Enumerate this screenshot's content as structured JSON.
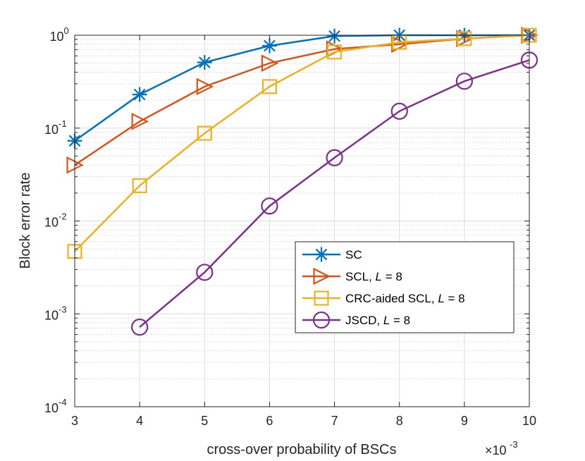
{
  "chart_data": {
    "type": "line",
    "title": "",
    "xlabel": "cross-over probability of BSCs",
    "ylabel": "Block error rate",
    "x_scale_note": "×10",
    "x_scale_exp": "-3",
    "y_scale": "log",
    "xlim": [
      3,
      10
    ],
    "ylim": [
      0.0001,
      1
    ],
    "grid": true,
    "x_ticks": [
      3,
      4,
      5,
      6,
      7,
      8,
      9,
      10
    ],
    "x_tick_labels": [
      "3",
      "4",
      "5",
      "6",
      "7",
      "8",
      "9",
      "10"
    ],
    "y_ticks": [
      {
        "value": 1,
        "base": "10",
        "exp": "0"
      },
      {
        "value": 0.1,
        "base": "10",
        "exp": "-1"
      },
      {
        "value": 0.01,
        "base": "10",
        "exp": "-2"
      },
      {
        "value": 0.001,
        "base": "10",
        "exp": "-3"
      },
      {
        "value": 0.0001,
        "base": "10",
        "exp": "-4"
      }
    ],
    "legend_position": "bottom-right",
    "series": [
      {
        "name": "SC",
        "legend_prefix": "SC",
        "legend_italic": "",
        "legend_suffix": "",
        "color": "#0072BD",
        "marker": "asterisk",
        "x": [
          3,
          4,
          5,
          6,
          7,
          8,
          9,
          10
        ],
        "y": [
          0.073,
          0.23,
          0.51,
          0.77,
          0.98,
          1.0,
          1.0,
          1.0
        ]
      },
      {
        "name": "SCL, L = 8",
        "legend_prefix": "SCL, ",
        "legend_italic": "L",
        "legend_suffix": " = 8",
        "color": "#D95319",
        "marker": "triangle-right",
        "x": [
          3,
          4,
          5,
          6,
          7,
          8,
          9,
          10
        ],
        "y": [
          0.04,
          0.118,
          0.28,
          0.5,
          0.71,
          0.8,
          0.92,
          1.0
        ]
      },
      {
        "name": "CRC-aided SCL, L = 8",
        "legend_prefix": "CRC-aided SCL, ",
        "legend_italic": "L",
        "legend_suffix": " = 8",
        "color": "#EDB120",
        "marker": "square",
        "x": [
          3,
          4,
          5,
          6,
          7,
          8,
          9,
          10
        ],
        "y": [
          0.0047,
          0.024,
          0.088,
          0.28,
          0.66,
          0.84,
          0.92,
          1.0
        ]
      },
      {
        "name": "JSCD, L = 8",
        "legend_prefix": "JSCD, ",
        "legend_italic": "L",
        "legend_suffix": " = 8",
        "color": "#7E2F8E",
        "marker": "circle",
        "x": [
          4,
          5,
          6,
          7,
          8,
          9,
          10
        ],
        "y": [
          0.00072,
          0.0028,
          0.0145,
          0.048,
          0.152,
          0.32,
          0.54
        ]
      }
    ]
  }
}
